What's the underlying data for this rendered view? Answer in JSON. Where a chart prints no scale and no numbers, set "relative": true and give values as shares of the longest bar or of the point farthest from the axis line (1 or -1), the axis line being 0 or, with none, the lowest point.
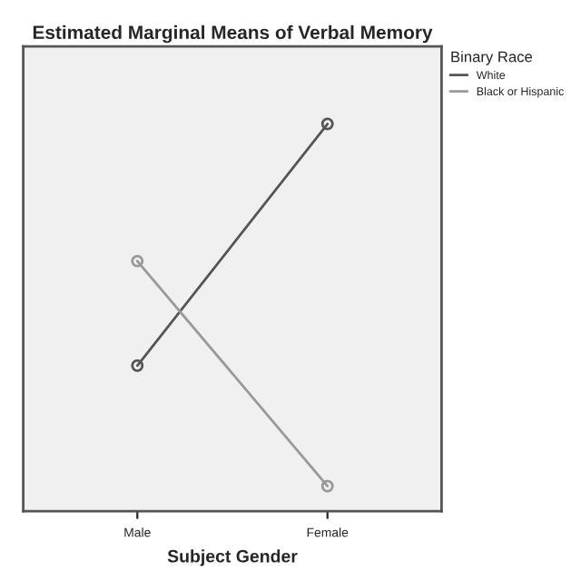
{
  "chart_data": {
    "type": "line",
    "title": "Estimated Marginal Means of Verbal Memory",
    "xlabel": "Subject Gender",
    "legend_title": "Binary Race",
    "categories": [
      "Male",
      "Female"
    ],
    "relative": true,
    "series": [
      {
        "name": "White",
        "color": "#555555",
        "values": [
          0.376,
          1.0
        ]
      },
      {
        "name": "Black or Hispanic",
        "color": "#999999",
        "values": [
          0.646,
          0.065
        ]
      }
    ],
    "marker": "circle",
    "legend": "top right",
    "tick_labels": "x",
    "grid": false
  }
}
